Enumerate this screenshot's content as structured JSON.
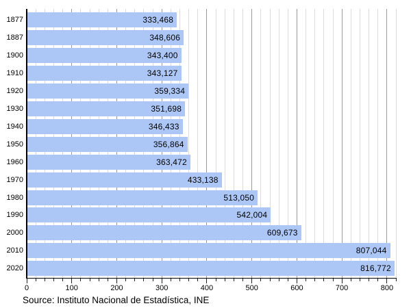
{
  "chart_data": {
    "type": "bar",
    "orientation": "horizontal",
    "categories": [
      "1877",
      "1887",
      "1900",
      "1910",
      "1920",
      "1930",
      "1940",
      "1950",
      "1960",
      "1970",
      "1980",
      "1990",
      "2000",
      "2010",
      "2020"
    ],
    "values": [
      333468,
      348606,
      343400,
      343127,
      359334,
      351698,
      346433,
      356864,
      363472,
      433138,
      513050,
      542004,
      609673,
      807044,
      816772
    ],
    "value_scale_divisor": 1000,
    "xlim": [
      0,
      820
    ],
    "x_major_tick_step": 100,
    "x_minor_tick_step": 20,
    "x_tick_labels": [
      "0",
      "100",
      "200",
      "300",
      "400",
      "500",
      "600",
      "700",
      "800"
    ],
    "grid": true,
    "legend": false,
    "title": ""
  },
  "source": "Source: Instituto Nacional de Estadística, INE",
  "colors": {
    "bar": "#acc6f5",
    "grid_minor": "#dcdcdc",
    "grid_major": "#9a9a9a",
    "axis": "#000000",
    "tick": "#222222",
    "text": "#000000"
  }
}
